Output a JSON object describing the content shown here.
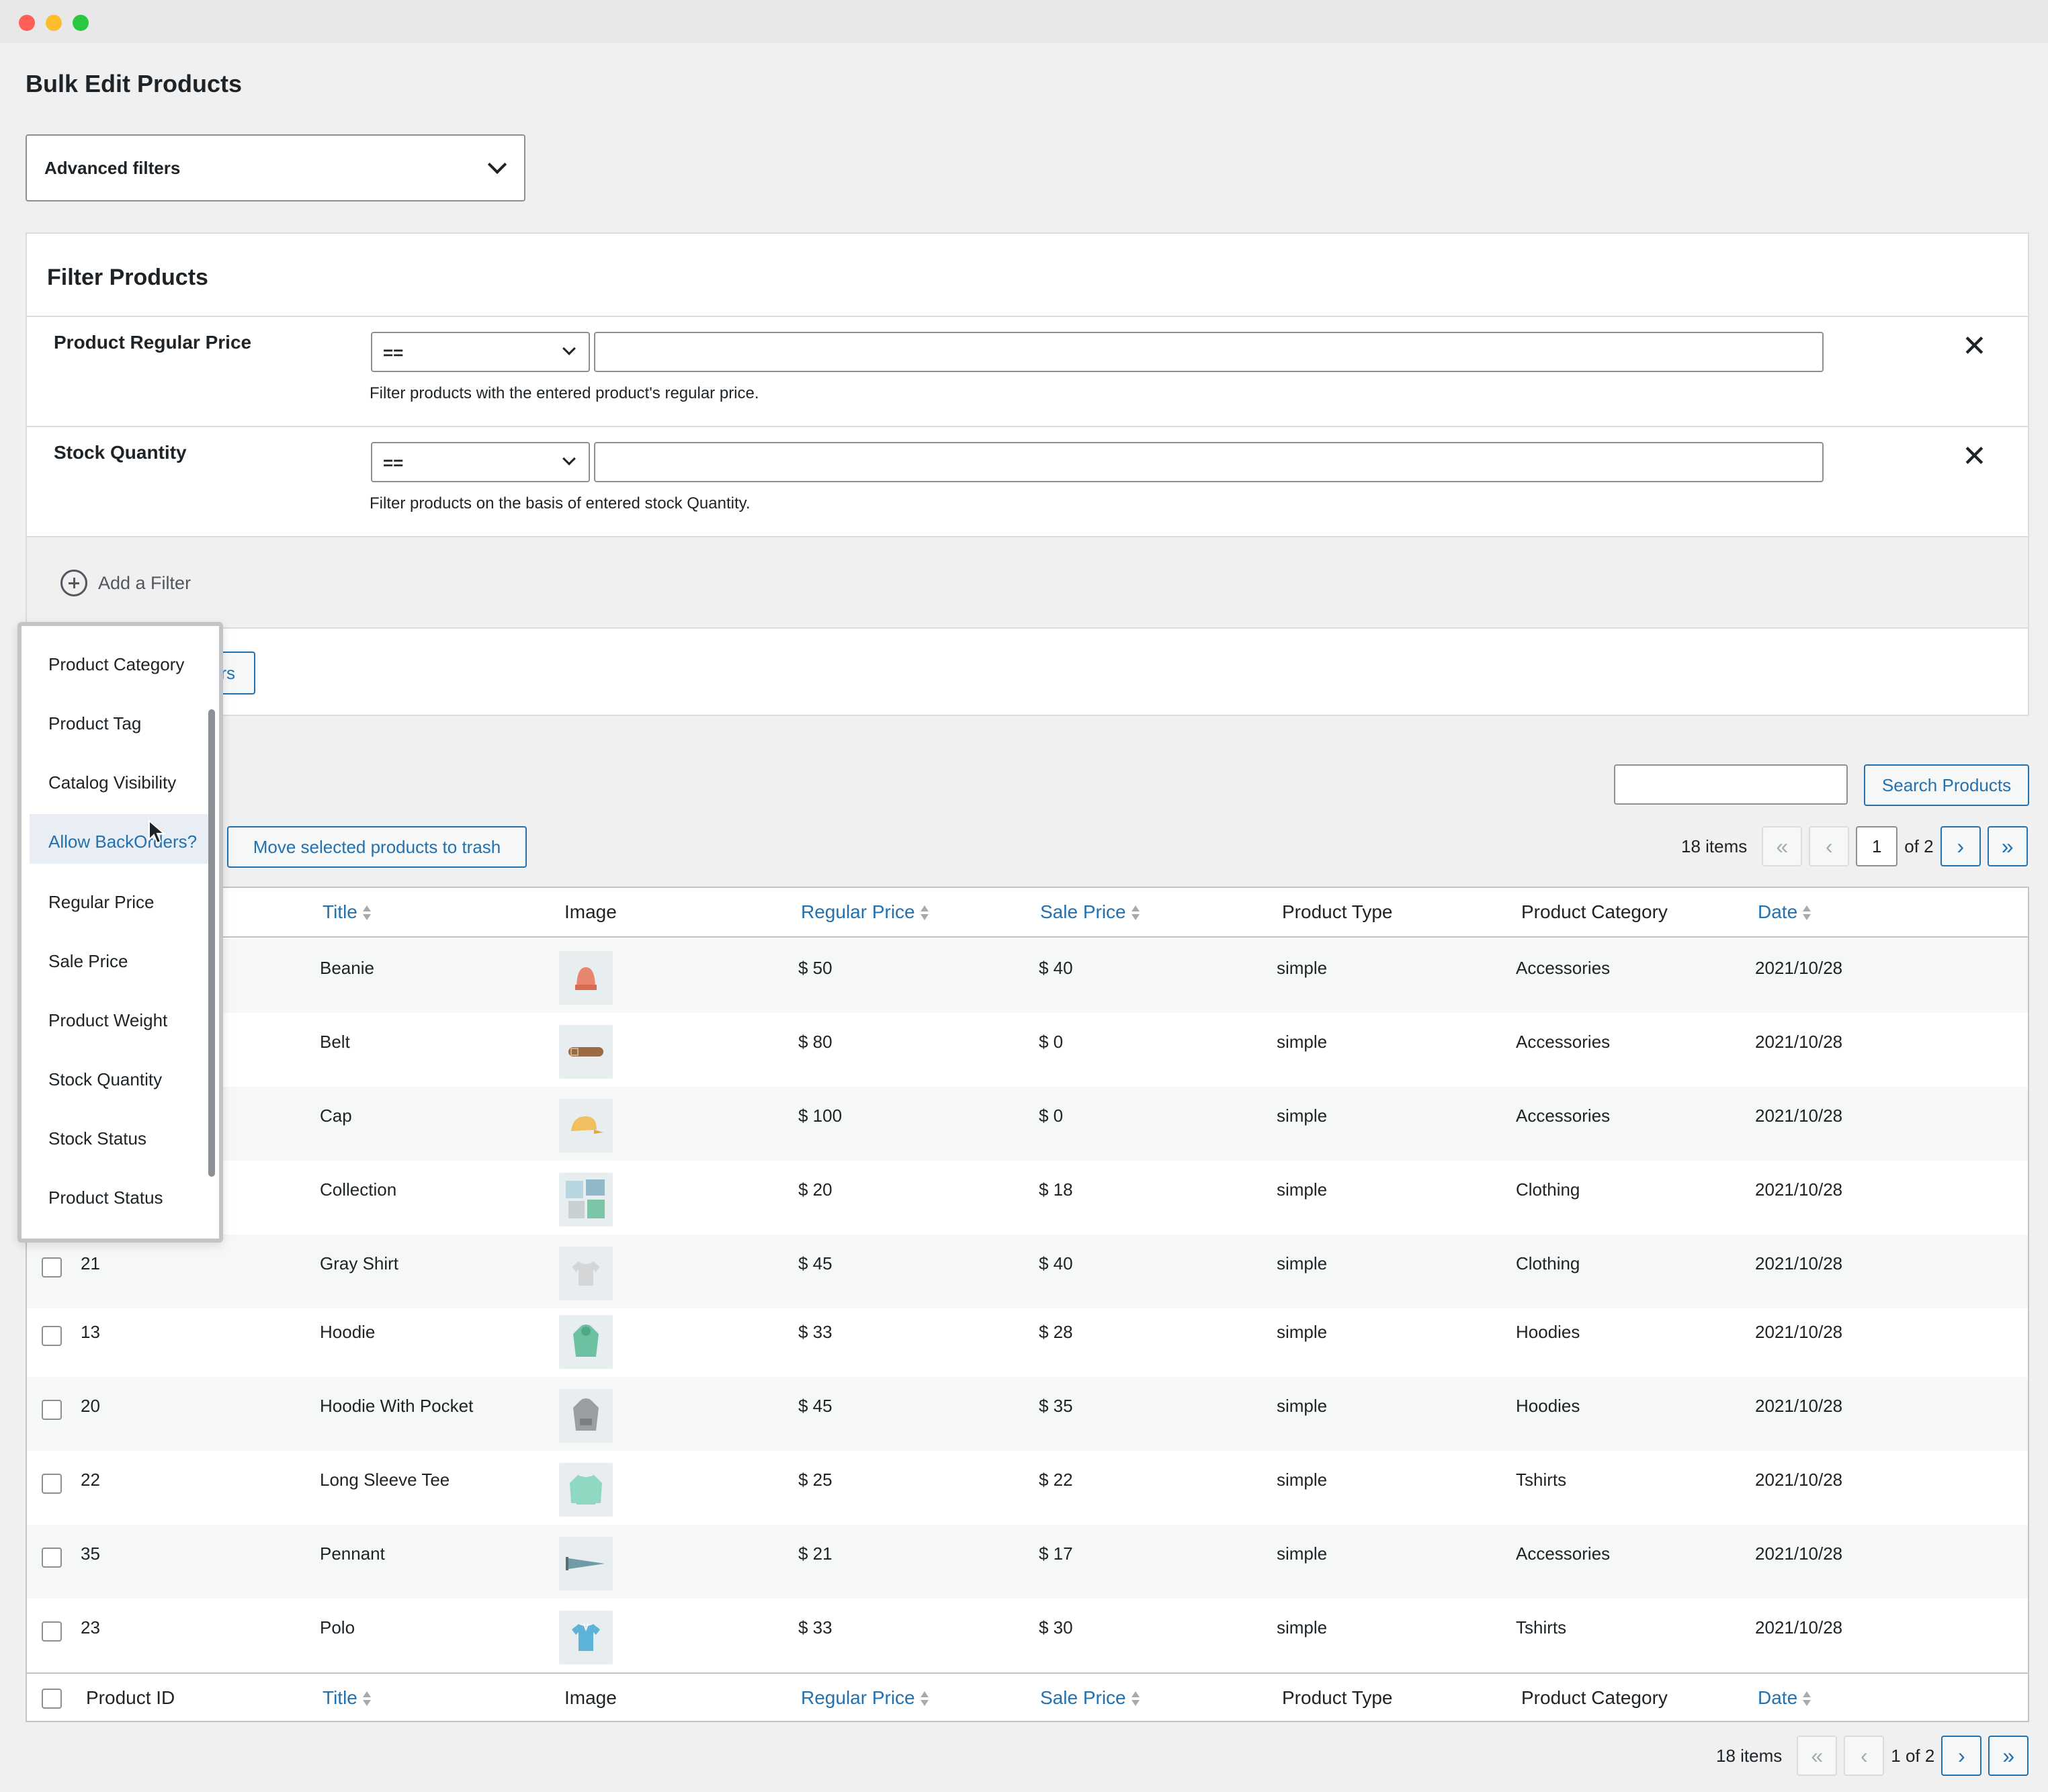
{
  "window": {
    "title": "Bulk Edit Products"
  },
  "advanced_filters": {
    "label": "Advanced filters"
  },
  "filter_panel": {
    "heading": "Filter Products",
    "filters": [
      {
        "label": "Product Regular Price",
        "operator": "==",
        "value": "",
        "description": "Filter products with the entered product's regular price."
      },
      {
        "label": "Stock Quantity",
        "operator": "==",
        "value": "",
        "description": "Filter products on the basis of entered stock Quantity."
      }
    ],
    "close_glyph": "✕",
    "add_filter_label": "Add a Filter",
    "apply_label_visible": "ilters"
  },
  "dropdown": {
    "items": [
      "Product Category",
      "Product Tag",
      "Catalog Visibility",
      "Allow BackOrders?",
      "Regular Price",
      "Sale Price",
      "Product Weight",
      "Stock Quantity",
      "Stock Status",
      "Product Status"
    ],
    "highlighted": "Allow BackOrders?"
  },
  "toolbar": {
    "search_placeholder": "",
    "search_button": "Search Products",
    "trash_button": "Move selected products to trash"
  },
  "pagination": {
    "items_count": "18 items",
    "current_page": "1",
    "of_label": "of 2",
    "bottom_label": "1 of 2",
    "first": "«",
    "prev": "‹",
    "next": "›",
    "last": "»"
  },
  "table": {
    "columns": {
      "product_id": "Product ID",
      "title": "Title",
      "image": "Image",
      "regular_price": "Regular Price",
      "sale_price": "Sale Price",
      "product_type": "Product Type",
      "product_category": "Product Category",
      "date": "Date"
    },
    "rows": [
      {
        "id": "",
        "title": "Beanie",
        "image_icon": "beanie-icon",
        "regular_price": "$ 50",
        "sale_price": "$ 40",
        "type": "simple",
        "category": "Accessories",
        "date": "2021/10/28"
      },
      {
        "id": "",
        "title": "Belt",
        "image_icon": "belt-icon",
        "regular_price": "$ 80",
        "sale_price": "$ 0",
        "type": "simple",
        "category": "Accessories",
        "date": "2021/10/28"
      },
      {
        "id": "",
        "title": "Cap",
        "image_icon": "cap-icon",
        "regular_price": "$ 100",
        "sale_price": "$ 0",
        "type": "simple",
        "category": "Accessories",
        "date": "2021/10/28"
      },
      {
        "id": "",
        "title": "Collection",
        "image_icon": "collection-icon",
        "regular_price": "$ 20",
        "sale_price": "$ 18",
        "type": "simple",
        "category": "Clothing",
        "date": "2021/10/28"
      },
      {
        "id": "21",
        "title": "Gray Shirt",
        "image_icon": "shirt-icon",
        "regular_price": "$ 45",
        "sale_price": "$ 40",
        "type": "simple",
        "category": "Clothing",
        "date": "2021/10/28"
      },
      {
        "id": "13",
        "title": "Hoodie",
        "image_icon": "hoodie-icon",
        "regular_price": "$ 33",
        "sale_price": "$ 28",
        "type": "simple",
        "category": "Hoodies",
        "date": "2021/10/28"
      },
      {
        "id": "20",
        "title": "Hoodie With Pocket",
        "image_icon": "hoodie-pocket-icon",
        "regular_price": "$ 45",
        "sale_price": "$ 35",
        "type": "simple",
        "category": "Hoodies",
        "date": "2021/10/28"
      },
      {
        "id": "22",
        "title": "Long Sleeve Tee",
        "image_icon": "long-sleeve-icon",
        "regular_price": "$ 25",
        "sale_price": "$ 22",
        "type": "simple",
        "category": "Tshirts",
        "date": "2021/10/28"
      },
      {
        "id": "35",
        "title": "Pennant",
        "image_icon": "pennant-icon",
        "regular_price": "$ 21",
        "sale_price": "$ 17",
        "type": "simple",
        "category": "Accessories",
        "date": "2021/10/28"
      },
      {
        "id": "23",
        "title": "Polo",
        "image_icon": "polo-icon",
        "regular_price": "$ 33",
        "sale_price": "$ 30",
        "type": "simple",
        "category": "Tshirts",
        "date": "2021/10/28"
      }
    ]
  },
  "colors": {
    "accent": "#2271b1",
    "background": "#f0f0f1",
    "border": "#c3c4c7"
  }
}
